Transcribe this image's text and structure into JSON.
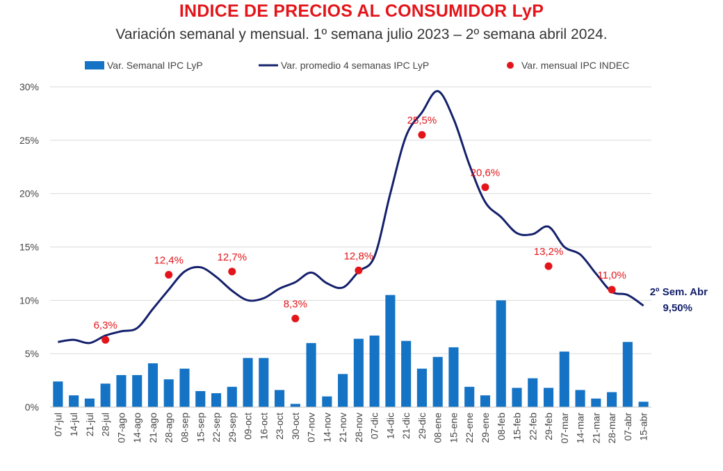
{
  "title": "INDICE DE PRECIOS AL CONSUMIDOR LyP",
  "subtitle": "Variación semanal y mensual. 1º semana julio 2023 – 2º semana abril 2024.",
  "colors": {
    "bars": "#1473c4",
    "line": "#14206b",
    "dots": "#e3151a",
    "dot_labels": "#e3151a",
    "end_label": "#14206b",
    "grid": "#d9d9d9",
    "axis_text": "#444444"
  },
  "chart_data": {
    "type": "bar",
    "categories": [
      "07-jul",
      "14-jul",
      "21-jul",
      "28-jul",
      "07-ago",
      "14-ago",
      "21-ago",
      "28-ago",
      "08-sep",
      "15-sep",
      "22-sep",
      "29-sep",
      "09-oct",
      "16-oct",
      "23-oct",
      "30-oct",
      "07-nov",
      "14-nov",
      "21-nov",
      "28-nov",
      "07-dic",
      "14-dic",
      "21-dic",
      "29-dic",
      "08-ene",
      "15-ene",
      "22-ene",
      "29-ene",
      "08-feb",
      "15-feb",
      "22-feb",
      "29-feb",
      "07-mar",
      "14-mar",
      "21-mar",
      "28-mar",
      "07-abr",
      "15-abr"
    ],
    "ylim": [
      0,
      30
    ],
    "yticks": [
      0,
      5,
      10,
      15,
      20,
      25,
      30
    ],
    "ytick_labels": [
      "0%",
      "5%",
      "10%",
      "15%",
      "20%",
      "25%",
      "30%"
    ],
    "grid": true,
    "legend_position": "top",
    "series": [
      {
        "name": "Var. Semanal IPC LyP",
        "kind": "bar",
        "values": [
          2.4,
          1.1,
          0.8,
          2.2,
          3.0,
          3.0,
          4.1,
          2.6,
          3.6,
          1.5,
          1.3,
          1.9,
          4.6,
          4.6,
          1.6,
          0.3,
          6.0,
          1.0,
          3.1,
          6.4,
          6.7,
          10.5,
          6.2,
          3.6,
          4.7,
          5.6,
          1.9,
          1.1,
          10.0,
          1.8,
          2.7,
          1.8,
          5.2,
          1.6,
          0.8,
          1.4,
          6.1,
          0.5
        ]
      },
      {
        "name": "Var. promedio 4 semanas IPC LyP",
        "kind": "line",
        "values": [
          6.1,
          6.3,
          6.0,
          6.7,
          7.1,
          7.4,
          9.2,
          11.0,
          12.7,
          13.1,
          12.2,
          10.9,
          10.0,
          10.2,
          11.1,
          11.7,
          12.6,
          11.6,
          11.2,
          12.7,
          14.1,
          20.0,
          25.4,
          27.6,
          29.6,
          27.0,
          22.7,
          19.2,
          17.8,
          16.3,
          16.2,
          16.9,
          15.0,
          14.3,
          12.5,
          10.8,
          10.5,
          9.5
        ]
      },
      {
        "name": "Var. mensual IPC INDEC",
        "kind": "dot",
        "points": [
          {
            "x": "28-jul",
            "y": 6.3,
            "label": "6,3%"
          },
          {
            "x": "28-ago",
            "y": 12.4,
            "label": "12,4%"
          },
          {
            "x": "29-sep",
            "y": 12.7,
            "label": "12,7%"
          },
          {
            "x": "30-oct",
            "y": 8.3,
            "label": "8,3%"
          },
          {
            "x": "28-nov",
            "y": 12.8,
            "label": "12,8%"
          },
          {
            "x": "29-dic",
            "y": 25.5,
            "label": "25,5%"
          },
          {
            "x": "29-ene",
            "y": 20.6,
            "label": "20,6%"
          },
          {
            "x": "29-feb",
            "y": 13.2,
            "label": "13,2%"
          },
          {
            "x": "28-mar",
            "y": 11.0,
            "label": "11,0%"
          }
        ]
      }
    ],
    "annotations": [
      {
        "text_line1": "2º Sem. Abr",
        "text_line2": "9,50%"
      }
    ]
  }
}
